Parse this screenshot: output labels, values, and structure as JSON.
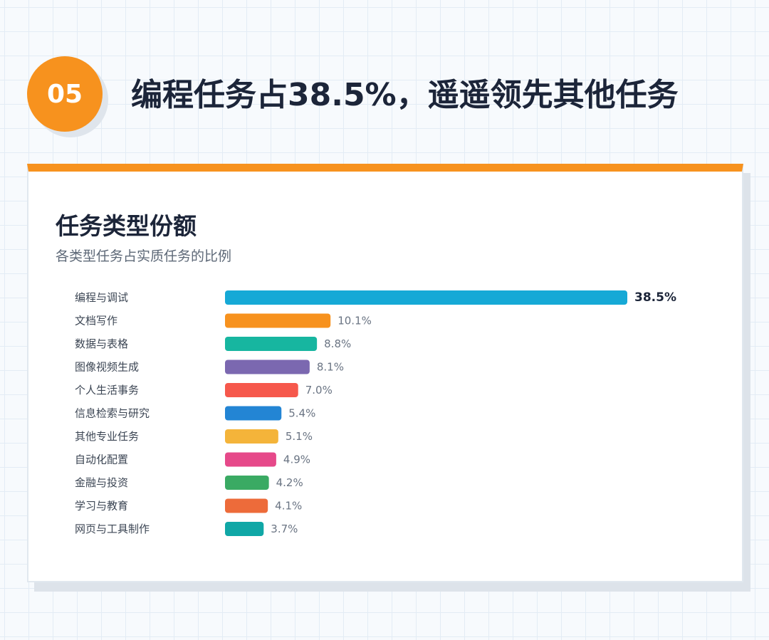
{
  "header": {
    "badge": "05",
    "title": "编程任务占38.5%，遥遥领先其他任务"
  },
  "chart_data": {
    "type": "bar",
    "orientation": "horizontal",
    "title": "任务类型份额",
    "subtitle": "各类型任务占实质任务的比例",
    "xlabel": "",
    "ylabel": "",
    "unit": "%",
    "xlim": [
      0,
      38.5
    ],
    "grid": false,
    "legend": "none",
    "categories": [
      "编程与调试",
      "文档写作",
      "数据与表格",
      "图像视频生成",
      "个人生活事务",
      "信息检索与研究",
      "其他专业任务",
      "自动化配置",
      "金融与投资",
      "学习与教育",
      "网页与工具制作"
    ],
    "values": [
      38.5,
      10.1,
      8.8,
      8.1,
      7.0,
      5.4,
      5.1,
      4.9,
      4.2,
      4.1,
      3.7
    ],
    "value_labels": [
      "38.5%",
      "10.1%",
      "8.8%",
      "8.1%",
      "7.0%",
      "5.4%",
      "5.1%",
      "4.9%",
      "4.2%",
      "4.1%",
      "3.7%"
    ],
    "colors": [
      "#16a9d6",
      "#f7921e",
      "#17b6a0",
      "#7b68b0",
      "#f6584c",
      "#2385d4",
      "#f4b43a",
      "#e6498a",
      "#3aaa63",
      "#ed6b3a",
      "#10a7a6"
    ]
  }
}
